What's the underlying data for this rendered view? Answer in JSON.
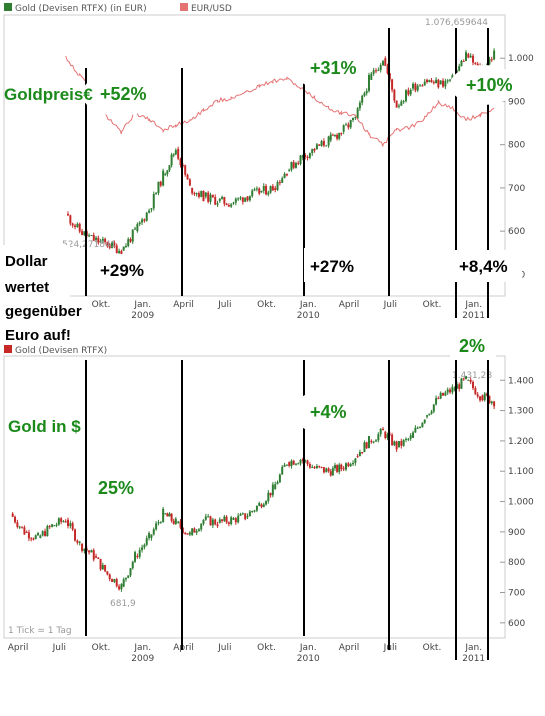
{
  "top_chart": {
    "legend": [
      {
        "label": "Gold (Devisen RTFX) (in EUR)",
        "color": "#2e7d32"
      },
      {
        "label": "EUR/USD",
        "color": "#e57373"
      }
    ],
    "y_ticks": [
      "1.000",
      "900",
      "800",
      "700",
      "600",
      "500"
    ],
    "x_ticks": [
      "Okt.",
      "Jan.",
      "April",
      "Juli",
      "Okt.",
      "Jan.",
      "April",
      "Juli",
      "Okt.",
      "Jan."
    ],
    "years": [
      {
        "label": "2009",
        "at": "Jan. 2009"
      },
      {
        "label": "2010",
        "at": "Jan. 2010"
      },
      {
        "label": "2011",
        "at": "Jan. 2011"
      }
    ],
    "max_label": "1.076,659644",
    "min_label": "524,271841",
    "annotations": {
      "title": "Goldpreis€",
      "p1": "+52%",
      "p2": "+31%",
      "p3": "+10%",
      "dollar_lines": [
        "Dollar",
        "wertet",
        "gegenüber",
        "Euro auf!"
      ],
      "d1": "+29%",
      "d2": "+27%",
      "d3": "+8,4%"
    }
  },
  "bottom_chart": {
    "legend": [
      {
        "label": "Gold (Devisen RTFX)",
        "color": "#c62828"
      }
    ],
    "y_ticks": [
      "1.400",
      "1.300",
      "1.200",
      "1.100",
      "1.000",
      "900",
      "800",
      "700",
      "600"
    ],
    "x_ticks": [
      "April",
      "Juli",
      "Okt.",
      "Jan.",
      "April",
      "Juli",
      "Okt.",
      "Jan.",
      "April",
      "Juli",
      "Okt.",
      "Jan."
    ],
    "years": [
      {
        "label": "2009",
        "at": "Jan. 2009"
      },
      {
        "label": "2010",
        "at": "Jan. 2010"
      },
      {
        "label": "2011",
        "at": "Jan. 2011"
      }
    ],
    "max_label": "1.431,28",
    "min_label": "681,9",
    "tick_note": "1 Tick = 1 Tag",
    "annotations": {
      "title": "Gold in $",
      "p1": "25%",
      "p2": "+4%",
      "p3": "2%"
    }
  },
  "colors": {
    "up": "#2e7d32",
    "down": "#c62828",
    "usd": "#e57373",
    "ann_green": "#1b8a1b",
    "axis": "#999999"
  },
  "chart_data": [
    {
      "type": "line",
      "title": "Gold (Devisen RTFX) (in EUR)",
      "series": [
        {
          "name": "Gold (Devisen RTFX) (in EUR)",
          "x": [
            "2008-07",
            "2008-08",
            "2008-09",
            "2008-10",
            "2008-11",
            "2008-12",
            "2009-01",
            "2009-02",
            "2009-03",
            "2009-04",
            "2009-05",
            "2009-06",
            "2009-07",
            "2009-08",
            "2009-09",
            "2009-10",
            "2009-11",
            "2009-12",
            "2010-01",
            "2010-02",
            "2010-03",
            "2010-04",
            "2010-05",
            "2010-06",
            "2010-07",
            "2010-08",
            "2010-09",
            "2010-10",
            "2010-11",
            "2010-12",
            "2011-01",
            "2011-02"
          ],
          "values": [
            640,
            600,
            580,
            570,
            555,
            600,
            650,
            730,
            790,
            700,
            680,
            670,
            665,
            680,
            690,
            700,
            740,
            770,
            790,
            810,
            830,
            860,
            950,
            1000,
            890,
            930,
            950,
            940,
            950,
            1010,
            970,
            1010
          ]
        },
        {
          "name": "EUR/USD",
          "x": [
            "2008-07",
            "2008-08",
            "2008-09",
            "2008-10",
            "2008-11",
            "2008-12",
            "2009-01",
            "2009-02",
            "2009-03",
            "2009-04",
            "2009-05",
            "2009-06",
            "2009-07",
            "2009-08",
            "2009-09",
            "2009-10",
            "2009-11",
            "2009-12",
            "2010-01",
            "2010-02",
            "2010-03",
            "2010-04",
            "2010-05",
            "2010-06",
            "2010-07",
            "2010-08",
            "2010-09",
            "2010-10",
            "2010-11",
            "2010-12",
            "2011-01",
            "2011-02"
          ],
          "values": [
            1.58,
            1.5,
            1.44,
            1.33,
            1.27,
            1.35,
            1.32,
            1.28,
            1.3,
            1.32,
            1.36,
            1.4,
            1.41,
            1.43,
            1.46,
            1.48,
            1.49,
            1.45,
            1.41,
            1.37,
            1.35,
            1.34,
            1.26,
            1.22,
            1.28,
            1.29,
            1.33,
            1.39,
            1.37,
            1.32,
            1.34,
            1.37
          ]
        }
      ],
      "ylim": [
        450,
        1100
      ],
      "max": 1076.659644,
      "min": 524.271841
    },
    {
      "type": "line",
      "title": "Gold (Devisen RTFX)",
      "series": [
        {
          "name": "Gold (Devisen RTFX)",
          "x": [
            "2008-03",
            "2008-04",
            "2008-05",
            "2008-06",
            "2008-07",
            "2008-08",
            "2008-09",
            "2008-10",
            "2008-11",
            "2008-12",
            "2009-01",
            "2009-02",
            "2009-03",
            "2009-04",
            "2009-05",
            "2009-06",
            "2009-07",
            "2009-08",
            "2009-09",
            "2009-10",
            "2009-11",
            "2009-12",
            "2010-01",
            "2010-02",
            "2010-03",
            "2010-04",
            "2010-05",
            "2010-06",
            "2010-07",
            "2010-08",
            "2010-09",
            "2010-10",
            "2010-11",
            "2010-12",
            "2011-01",
            "2011-02"
          ],
          "values": [
            960,
            900,
            880,
            920,
            940,
            860,
            820,
            760,
            720,
            820,
            880,
            960,
            930,
            890,
            940,
            930,
            940,
            950,
            990,
            1040,
            1130,
            1140,
            1110,
            1100,
            1110,
            1150,
            1200,
            1230,
            1180,
            1210,
            1280,
            1340,
            1370,
            1400,
            1350,
            1330
          ]
        }
      ],
      "ylim": [
        550,
        1480
      ],
      "max": 1431.28,
      "min": 681.9
    }
  ]
}
